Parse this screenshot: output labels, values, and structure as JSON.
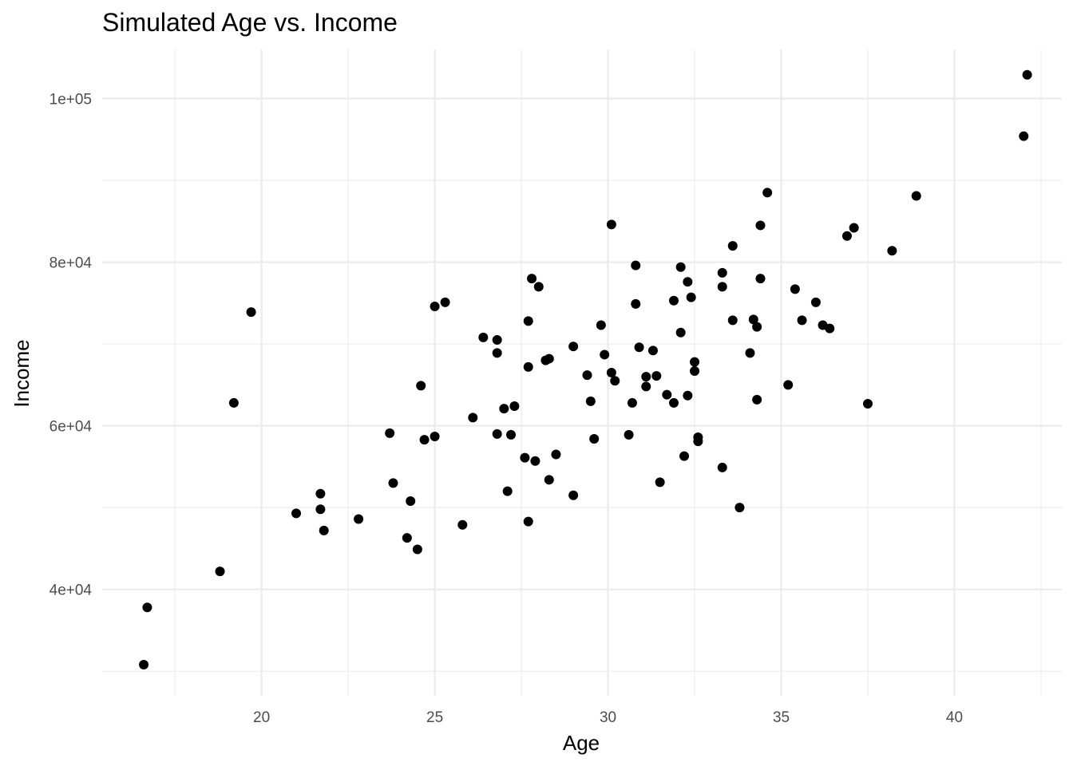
{
  "chart_data": {
    "type": "scatter",
    "title": "Simulated Age vs. Income",
    "xlabel": "Age",
    "ylabel": "Income",
    "xlim": [
      15.4,
      43.1
    ],
    "ylim": [
      27000,
      106000
    ],
    "x_ticks": [
      20,
      25,
      30,
      35,
      40
    ],
    "x_tick_labels": [
      "20",
      "25",
      "30",
      "35",
      "40"
    ],
    "x_minor_ticks": [
      17.5,
      22.5,
      27.5,
      32.5,
      37.5,
      42.5
    ],
    "y_ticks": [
      40000,
      60000,
      80000,
      100000
    ],
    "y_tick_labels": [
      "4e+04",
      "6e+04",
      "8e+04",
      "1e+05"
    ],
    "y_minor_ticks": [
      30000,
      50000,
      70000,
      90000
    ],
    "grid": true,
    "point_color": "#000000",
    "points": [
      {
        "x": 16.6,
        "y": 30800
      },
      {
        "x": 16.7,
        "y": 37800
      },
      {
        "x": 18.8,
        "y": 42200
      },
      {
        "x": 19.2,
        "y": 62800
      },
      {
        "x": 19.7,
        "y": 73900
      },
      {
        "x": 21.0,
        "y": 49300
      },
      {
        "x": 21.7,
        "y": 51700
      },
      {
        "x": 21.7,
        "y": 49800
      },
      {
        "x": 21.8,
        "y": 47200
      },
      {
        "x": 22.8,
        "y": 48600
      },
      {
        "x": 23.7,
        "y": 59100
      },
      {
        "x": 23.8,
        "y": 53000
      },
      {
        "x": 24.2,
        "y": 46300
      },
      {
        "x": 24.3,
        "y": 50800
      },
      {
        "x": 24.5,
        "y": 44900
      },
      {
        "x": 24.6,
        "y": 64900
      },
      {
        "x": 24.7,
        "y": 58300
      },
      {
        "x": 25.0,
        "y": 58700
      },
      {
        "x": 25.0,
        "y": 74600
      },
      {
        "x": 25.3,
        "y": 75100
      },
      {
        "x": 25.8,
        "y": 47900
      },
      {
        "x": 26.1,
        "y": 61000
      },
      {
        "x": 26.4,
        "y": 70800
      },
      {
        "x": 26.8,
        "y": 68900
      },
      {
        "x": 26.8,
        "y": 70500
      },
      {
        "x": 26.8,
        "y": 59000
      },
      {
        "x": 27.0,
        "y": 62100
      },
      {
        "x": 27.1,
        "y": 52000
      },
      {
        "x": 27.2,
        "y": 58900
      },
      {
        "x": 27.3,
        "y": 62400
      },
      {
        "x": 27.6,
        "y": 56100
      },
      {
        "x": 27.7,
        "y": 48300
      },
      {
        "x": 27.7,
        "y": 72800
      },
      {
        "x": 27.7,
        "y": 67200
      },
      {
        "x": 27.8,
        "y": 78000
      },
      {
        "x": 27.9,
        "y": 55700
      },
      {
        "x": 28.0,
        "y": 77000
      },
      {
        "x": 28.2,
        "y": 68000
      },
      {
        "x": 28.3,
        "y": 68200
      },
      {
        "x": 28.3,
        "y": 53400
      },
      {
        "x": 28.5,
        "y": 56500
      },
      {
        "x": 29.0,
        "y": 51500
      },
      {
        "x": 29.0,
        "y": 69700
      },
      {
        "x": 29.4,
        "y": 66200
      },
      {
        "x": 29.5,
        "y": 63000
      },
      {
        "x": 29.6,
        "y": 58400
      },
      {
        "x": 29.8,
        "y": 72300
      },
      {
        "x": 29.9,
        "y": 68700
      },
      {
        "x": 30.1,
        "y": 66500
      },
      {
        "x": 30.1,
        "y": 84600
      },
      {
        "x": 30.2,
        "y": 65500
      },
      {
        "x": 30.6,
        "y": 58900
      },
      {
        "x": 30.7,
        "y": 62800
      },
      {
        "x": 30.8,
        "y": 74900
      },
      {
        "x": 30.8,
        "y": 79600
      },
      {
        "x": 30.9,
        "y": 69600
      },
      {
        "x": 31.1,
        "y": 66000
      },
      {
        "x": 31.1,
        "y": 64800
      },
      {
        "x": 31.3,
        "y": 69200
      },
      {
        "x": 31.4,
        "y": 66100
      },
      {
        "x": 31.5,
        "y": 53100
      },
      {
        "x": 31.7,
        "y": 63800
      },
      {
        "x": 31.9,
        "y": 62800
      },
      {
        "x": 31.9,
        "y": 75300
      },
      {
        "x": 32.1,
        "y": 71400
      },
      {
        "x": 32.1,
        "y": 79400
      },
      {
        "x": 32.2,
        "y": 56300
      },
      {
        "x": 32.3,
        "y": 63700
      },
      {
        "x": 32.3,
        "y": 77600
      },
      {
        "x": 32.4,
        "y": 75700
      },
      {
        "x": 32.5,
        "y": 67800
      },
      {
        "x": 32.5,
        "y": 66700
      },
      {
        "x": 32.6,
        "y": 58100
      },
      {
        "x": 32.6,
        "y": 58600
      },
      {
        "x": 33.3,
        "y": 78700
      },
      {
        "x": 33.3,
        "y": 77000
      },
      {
        "x": 33.3,
        "y": 54900
      },
      {
        "x": 33.6,
        "y": 72900
      },
      {
        "x": 33.6,
        "y": 82000
      },
      {
        "x": 33.8,
        "y": 50000
      },
      {
        "x": 34.1,
        "y": 68900
      },
      {
        "x": 34.2,
        "y": 73000
      },
      {
        "x": 34.3,
        "y": 72100
      },
      {
        "x": 34.3,
        "y": 63200
      },
      {
        "x": 34.4,
        "y": 78000
      },
      {
        "x": 34.4,
        "y": 84500
      },
      {
        "x": 34.6,
        "y": 88500
      },
      {
        "x": 35.2,
        "y": 65000
      },
      {
        "x": 35.4,
        "y": 76700
      },
      {
        "x": 35.6,
        "y": 72900
      },
      {
        "x": 36.0,
        "y": 75100
      },
      {
        "x": 36.2,
        "y": 72300
      },
      {
        "x": 36.4,
        "y": 71900
      },
      {
        "x": 36.9,
        "y": 83200
      },
      {
        "x": 37.1,
        "y": 84200
      },
      {
        "x": 37.5,
        "y": 62700
      },
      {
        "x": 38.2,
        "y": 81400
      },
      {
        "x": 38.9,
        "y": 88100
      },
      {
        "x": 42.0,
        "y": 95400
      },
      {
        "x": 42.1,
        "y": 102900
      }
    ]
  }
}
